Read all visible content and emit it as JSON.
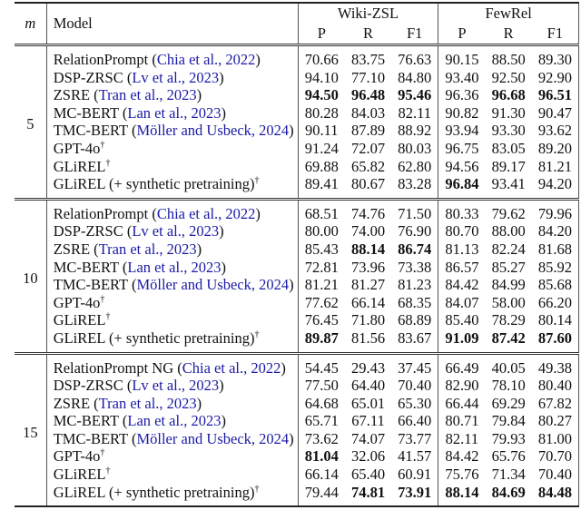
{
  "header": {
    "m_label": "m",
    "model_label": "Model",
    "datasets": [
      "Wiki-ZSL",
      "FewRel"
    ],
    "metrics": [
      "P",
      "R",
      "F1",
      "P",
      "R",
      "F1"
    ]
  },
  "groups": [
    {
      "m": "5",
      "rows": [
        {
          "model": "RelationPrompt",
          "cite": "Chia et al., 2022",
          "dagger": false,
          "values": [
            "70.66",
            "83.75",
            "76.63",
            "90.15",
            "88.50",
            "89.30"
          ],
          "bold": []
        },
        {
          "model": "DSP-ZRSC",
          "cite": "Lv et al., 2023",
          "dagger": false,
          "values": [
            "94.10",
            "77.10",
            "84.80",
            "93.40",
            "92.50",
            "92.90"
          ],
          "bold": []
        },
        {
          "model": "ZSRE",
          "cite": "Tran et al., 2023",
          "dagger": false,
          "values": [
            "94.50",
            "96.48",
            "95.46",
            "96.36",
            "96.68",
            "96.51"
          ],
          "bold": [
            0,
            1,
            2,
            4,
            5
          ]
        },
        {
          "model": "MC-BERT",
          "cite": "Lan et al., 2023",
          "dagger": false,
          "values": [
            "80.28",
            "84.03",
            "82.11",
            "90.82",
            "91.30",
            "90.47"
          ],
          "bold": []
        },
        {
          "model": "TMC-BERT",
          "cite": "Möller and Usbeck, 2024",
          "dagger": false,
          "values": [
            "90.11",
            "87.89",
            "88.92",
            "93.94",
            "93.30",
            "93.62"
          ],
          "bold": []
        },
        {
          "model": "GPT-4o",
          "cite": "",
          "dagger": true,
          "values": [
            "91.24",
            "72.07",
            "80.03",
            "96.75",
            "83.05",
            "89.20"
          ],
          "bold": []
        },
        {
          "model": "GLiREL",
          "cite": "",
          "dagger": true,
          "values": [
            "69.88",
            "65.82",
            "62.80",
            "94.56",
            "89.17",
            "81.21"
          ],
          "bold": []
        },
        {
          "model": "GLiREL (+ synthetic pretraining)",
          "cite": "",
          "dagger": true,
          "values": [
            "89.41",
            "80.67",
            "83.28",
            "96.84",
            "93.41",
            "94.20"
          ],
          "bold": [
            3
          ]
        }
      ]
    },
    {
      "m": "10",
      "rows": [
        {
          "model": "RelationPrompt",
          "cite": "Chia et al., 2022",
          "dagger": false,
          "values": [
            "68.51",
            "74.76",
            "71.50",
            "80.33",
            "79.62",
            "79.96"
          ],
          "bold": []
        },
        {
          "model": "DSP-ZRSC",
          "cite": "Lv et al., 2023",
          "dagger": false,
          "values": [
            "80.00",
            "74.00",
            "76.90",
            "80.70",
            "88.00",
            "84.20"
          ],
          "bold": []
        },
        {
          "model": "ZSRE",
          "cite": "Tran et al., 2023",
          "dagger": false,
          "values": [
            "85.43",
            "88.14",
            "86.74",
            "81.13",
            "82.24",
            "81.68"
          ],
          "bold": [
            1,
            2
          ]
        },
        {
          "model": "MC-BERT",
          "cite": "Lan et al., 2023",
          "dagger": false,
          "values": [
            "72.81",
            "73.96",
            "73.38",
            "86.57",
            "85.27",
            "85.92"
          ],
          "bold": []
        },
        {
          "model": "TMC-BERT",
          "cite": "Möller and Usbeck, 2024",
          "dagger": false,
          "values": [
            "81.21",
            "81.27",
            "81.23",
            "84.42",
            "84.99",
            "85.68"
          ],
          "bold": []
        },
        {
          "model": "GPT-4o",
          "cite": "",
          "dagger": true,
          "values": [
            "77.62",
            "66.14",
            "68.35",
            "84.07",
            "58.00",
            "66.20"
          ],
          "bold": []
        },
        {
          "model": "GLiREL",
          "cite": "",
          "dagger": true,
          "values": [
            "76.45",
            "71.80",
            "68.89",
            "85.40",
            "78.29",
            "80.14"
          ],
          "bold": []
        },
        {
          "model": "GLiREL (+ synthetic pretraining)",
          "cite": "",
          "dagger": true,
          "values": [
            "89.87",
            "81.56",
            "83.67",
            "91.09",
            "87.42",
            "87.60"
          ],
          "bold": [
            0,
            3,
            4,
            5
          ]
        }
      ]
    },
    {
      "m": "15",
      "rows": [
        {
          "model": "RelationPrompt NG",
          "cite": "Chia et al., 2022",
          "dagger": false,
          "values": [
            "54.45",
            "29.43",
            "37.45",
            "66.49",
            "40.05",
            "49.38"
          ],
          "bold": []
        },
        {
          "model": "DSP-ZRSC",
          "cite": "Lv et al., 2023",
          "dagger": false,
          "values": [
            "77.50",
            "64.40",
            "70.40",
            "82.90",
            "78.10",
            "80.40"
          ],
          "bold": []
        },
        {
          "model": "ZSRE",
          "cite": "Tran et al., 2023",
          "dagger": false,
          "values": [
            "64.68",
            "65.01",
            "65.30",
            "66.44",
            "69.29",
            "67.82"
          ],
          "bold": []
        },
        {
          "model": "MC-BERT",
          "cite": "Lan et al., 2023",
          "dagger": false,
          "values": [
            "65.71",
            "67.11",
            "66.40",
            "80.71",
            "79.84",
            "80.27"
          ],
          "bold": []
        },
        {
          "model": "TMC-BERT",
          "cite": "Möller and Usbeck, 2024",
          "dagger": false,
          "values": [
            "73.62",
            "74.07",
            "73.77",
            "82.11",
            "79.93",
            "81.00"
          ],
          "bold": []
        },
        {
          "model": "GPT-4o",
          "cite": "",
          "dagger": true,
          "values": [
            "81.04",
            "32.06",
            "41.57",
            "84.42",
            "65.76",
            "70.70"
          ],
          "bold": [
            0
          ]
        },
        {
          "model": "GLiREL",
          "cite": "",
          "dagger": true,
          "values": [
            "66.14",
            "65.40",
            "60.91",
            "75.76",
            "71.34",
            "70.40"
          ],
          "bold": []
        },
        {
          "model": "GLiREL (+ synthetic pretraining)",
          "cite": "",
          "dagger": true,
          "values": [
            "79.44",
            "74.81",
            "73.91",
            "88.14",
            "84.69",
            "84.48"
          ],
          "bold": [
            1,
            2,
            3,
            4,
            5
          ]
        }
      ]
    }
  ],
  "colors": {
    "citation": "#1a1aa6",
    "text": "#111111"
  }
}
